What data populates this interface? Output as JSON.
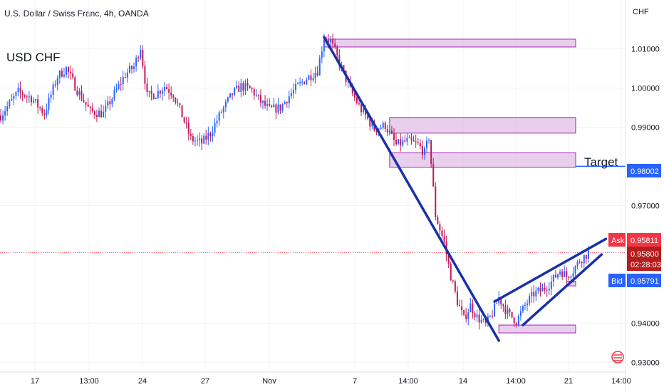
{
  "header": {
    "symbol_title": "U.S. Dollar / Swiss Franc, 4h, OANDA",
    "currency": "CHF"
  },
  "annotations": {
    "chart_label": "USD CHF",
    "target_label": "Target"
  },
  "price_tags": {
    "target": "0.98002",
    "ask_label": "Ask",
    "ask": "0.95811",
    "last": "0.95800",
    "countdown": "02:28:03",
    "bid_label": "Bid",
    "bid": "0.95791"
  },
  "colors": {
    "bull": "#2962ff",
    "bear": "#c2185b",
    "trendline": "#1a30a8",
    "zone_fill": "#e1bee7",
    "zone_stroke": "#9c27b0",
    "target_line": "#2962ff",
    "ask_tag": "#f23645",
    "bid_tag": "#2962ff",
    "last_tag": "#b71c1c",
    "grid": "#f0f3fa"
  },
  "chart_data": {
    "type": "candlestick",
    "title": "U.S. Dollar / Swiss Franc, 4h, OANDA",
    "ylim": [
      0.9275,
      1.0225
    ],
    "y_ticks": [
      "1.01000",
      "1.00000",
      "0.99000",
      "0.97000",
      "0.94000",
      "0.93000"
    ],
    "x_ticks": [
      "17",
      "13:00",
      "24",
      "27",
      "Nov",
      "7",
      "14:00",
      "14",
      "14:00",
      "21",
      "14:00"
    ],
    "grid": true,
    "target_price": 0.98002,
    "last_price": 0.958,
    "path_points": [
      [
        0,
        0.993
      ],
      [
        8,
        0.999
      ],
      [
        14,
        0.9975
      ],
      [
        20,
        0.9935
      ],
      [
        26,
        1.003
      ],
      [
        30,
        1.005
      ],
      [
        35,
        0.9995
      ],
      [
        41,
        0.994
      ],
      [
        47,
        0.9935
      ],
      [
        52,
        0.9985
      ],
      [
        57,
        1.0035
      ],
      [
        61,
        1.0055
      ],
      [
        64,
        1.0105
      ],
      [
        67,
        0.998
      ],
      [
        71,
        0.9985
      ],
      [
        75,
        1.0005
      ],
      [
        79,
        0.9985
      ],
      [
        83,
        0.993
      ],
      [
        87,
        0.987
      ],
      [
        92,
        0.986
      ],
      [
        96,
        0.9885
      ],
      [
        101,
        0.994
      ],
      [
        106,
        0.9985
      ],
      [
        110,
        1.0005
      ],
      [
        115,
        0.9995
      ],
      [
        119,
        0.9965
      ],
      [
        123,
        0.9945
      ],
      [
        128,
        0.995
      ],
      [
        132,
        0.998
      ],
      [
        136,
        1.0005
      ],
      [
        140,
        1.0025
      ],
      [
        145,
        1.0045
      ],
      [
        148,
        1.013
      ],
      [
        151,
        1.012
      ],
      [
        155,
        1.0065
      ],
      [
        160,
        0.9995
      ],
      [
        165,
        0.9945
      ],
      [
        171,
        0.9895
      ],
      [
        176,
        0.9905
      ],
      [
        181,
        0.9855
      ],
      [
        186,
        0.9865
      ],
      [
        191,
        0.9855
      ],
      [
        194,
        0.9835
      ],
      [
        196,
        0.9875
      ],
      [
        199,
        0.9675
      ],
      [
        203,
        0.9605
      ],
      [
        206,
        0.952
      ],
      [
        209,
        0.9455
      ],
      [
        212,
        0.941
      ],
      [
        215,
        0.9445
      ],
      [
        218,
        0.9415
      ],
      [
        222,
        0.9395
      ],
      [
        225,
        0.9425
      ],
      [
        228,
        0.9465
      ],
      [
        232,
        0.9425
      ],
      [
        236,
        0.9405
      ],
      [
        240,
        0.9445
      ],
      [
        244,
        0.9475
      ],
      [
        248,
        0.9485
      ],
      [
        252,
        0.9505
      ],
      [
        256,
        0.9535
      ],
      [
        259,
        0.952
      ],
      [
        262,
        0.9535
      ],
      [
        265,
        0.956
      ],
      [
        269,
        0.958
      ]
    ],
    "zones": [
      {
        "x0": 148,
        "x1": 268,
        "y0": 1.0105,
        "y1": 1.0125
      },
      {
        "x0": 178,
        "x1": 268,
        "y0": 0.9885,
        "y1": 0.9925
      },
      {
        "x0": 178,
        "x1": 268,
        "y0": 0.9798,
        "y1": 0.9835
      },
      {
        "x0": 228,
        "x1": 268,
        "y0": 0.9375,
        "y1": 0.9395
      },
      {
        "x0": 259,
        "x1": 268,
        "y0": 0.9495,
        "y1": 0.9507
      }
    ],
    "trendlines": [
      {
        "x0": 148,
        "y0": 1.013,
        "x1": 228,
        "y1": 0.9355
      },
      {
        "x0": 226,
        "y0": 0.9455,
        "x1": 277,
        "y1": 0.9615
      },
      {
        "x0": 239,
        "y0": 0.9395,
        "x1": 275,
        "y1": 0.9575
      }
    ]
  }
}
